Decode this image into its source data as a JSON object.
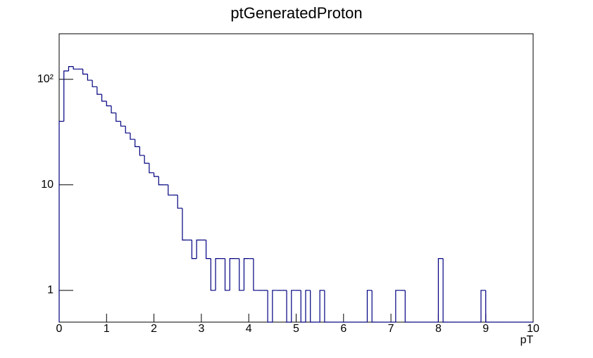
{
  "chart_data": {
    "type": "histogram",
    "title": "ptGeneratedProton",
    "xlabel": "pT",
    "bins": [
      0,
      0.1,
      0.2,
      0.3,
      0.4,
      0.5,
      0.6,
      0.7,
      0.8,
      0.9,
      1,
      1.1,
      1.2,
      1.3,
      1.4,
      1.5,
      1.6,
      1.7,
      1.8,
      1.9,
      2,
      2.1,
      2.2,
      2.3,
      2.4,
      2.5,
      2.6,
      2.7,
      2.8,
      2.9,
      3,
      3.1,
      3.2,
      3.3,
      3.4,
      3.5,
      3.6,
      3.7,
      3.8,
      3.9,
      4,
      4.1,
      4.2,
      4.3,
      4.4,
      4.5,
      4.6,
      4.7,
      4.8,
      4.9,
      5,
      5.1,
      5.2,
      5.3,
      5.4,
      5.5,
      5.6,
      5.7,
      5.8,
      5.9,
      6,
      6.1,
      6.2,
      6.3,
      6.4,
      6.5,
      6.6,
      6.7,
      6.8,
      6.9,
      7,
      7.1,
      7.2,
      7.3,
      7.4,
      7.5,
      7.6,
      7.7,
      7.8,
      7.9,
      8,
      8.1,
      8.2,
      8.3,
      8.4,
      8.5,
      8.6,
      8.7,
      8.8,
      8.9,
      9,
      9.1,
      9.2,
      9.3,
      9.4,
      9.5,
      9.6,
      9.7,
      9.8,
      9.9,
      10
    ],
    "values": [
      40,
      120,
      132,
      125,
      125,
      112,
      98,
      85,
      72,
      62,
      56,
      48,
      40,
      36,
      31,
      27,
      23,
      19,
      16,
      13,
      12,
      10,
      10,
      8,
      8,
      6,
      3,
      3,
      2,
      3,
      3,
      2,
      1,
      2,
      2,
      1,
      2,
      2,
      1,
      2,
      2,
      1,
      1,
      1,
      0,
      1,
      1,
      1,
      0,
      1,
      1,
      0,
      1,
      0,
      0,
      1,
      0,
      0,
      0,
      0,
      0,
      0,
      0,
      0,
      0,
      1,
      0,
      0,
      0,
      0,
      0,
      1,
      1,
      0,
      0,
      0,
      0,
      0,
      0,
      0,
      2,
      0,
      0,
      0,
      0,
      0,
      0,
      0,
      0,
      1,
      0,
      0,
      0,
      0,
      0,
      0,
      0,
      0,
      0,
      0
    ],
    "color": "#000080",
    "log_y": true,
    "xlim": [
      0,
      10
    ],
    "xticks": [
      0,
      1,
      2,
      3,
      4,
      5,
      6,
      7,
      8,
      9,
      10
    ],
    "ylim": [
      0.5,
      270
    ],
    "yticks": [
      1,
      10,
      {
        "value": 100,
        "label": "10²"
      }
    ]
  }
}
